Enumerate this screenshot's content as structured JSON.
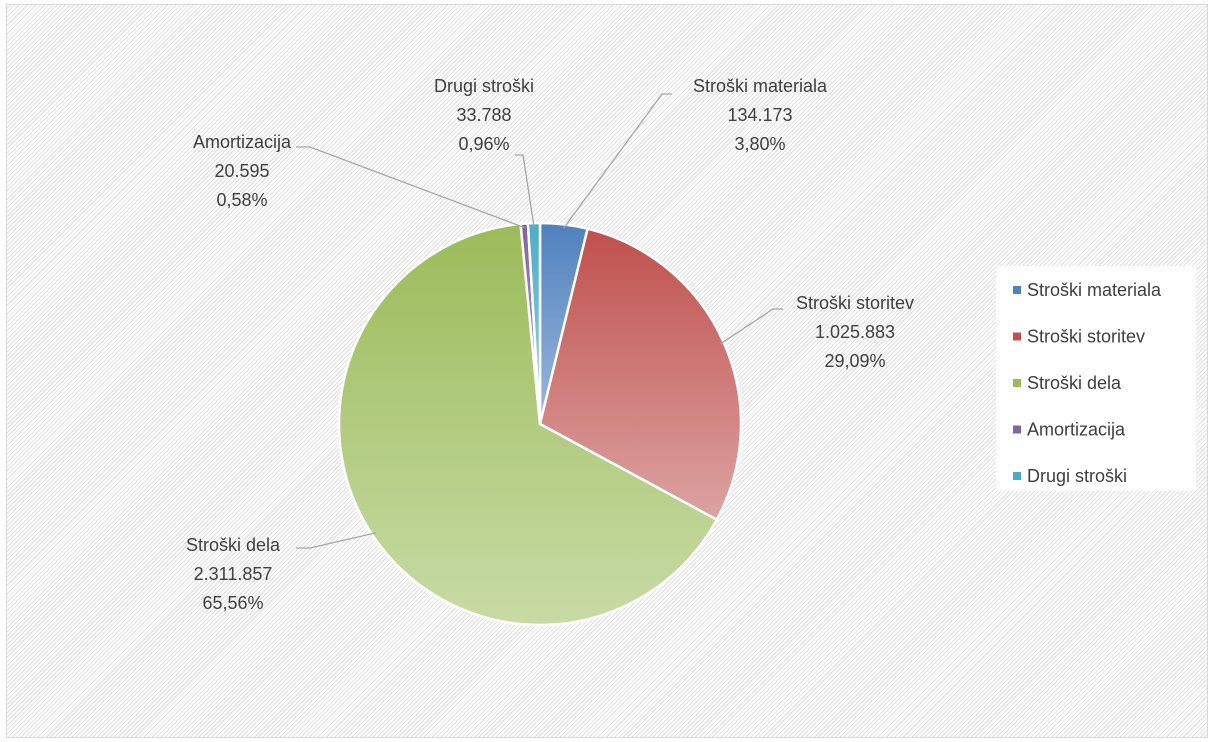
{
  "chart_data": {
    "type": "pie",
    "categories": [
      "Stroški materiala",
      "Stroški storitev",
      "Stroški dela",
      "Amortizacija",
      "Drugi stroški"
    ],
    "values": [
      134173,
      1025883,
      2311857,
      20595,
      33788
    ],
    "value_labels": [
      "134.173",
      "1.025.883",
      "2.311.857",
      "20.595",
      "33.788"
    ],
    "percent_labels": [
      "3,80%",
      "29,09%",
      "65,56%",
      "0,58%",
      "0,96%"
    ],
    "colors": [
      "#4f81bd",
      "#c0504d",
      "#9bbb59",
      "#8064a2",
      "#4bacc6"
    ],
    "colors_light": [
      "#9db8de",
      "#dca3a2",
      "#c8dba5",
      "#b6a5cf",
      "#9dd4e3"
    ],
    "legend_position": "right",
    "start_angle": "12 o'clock, clockwise"
  }
}
